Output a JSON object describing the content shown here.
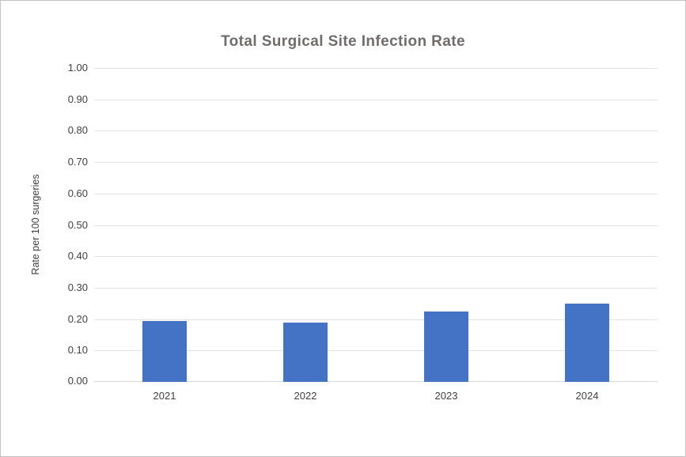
{
  "chart_data": {
    "type": "bar",
    "title": "Total Surgical Site Infection Rate",
    "xlabel": "",
    "ylabel": "Rate per 100 surgeries",
    "categories": [
      "2021",
      "2022",
      "2023",
      "2024"
    ],
    "values": [
      0.195,
      0.19,
      0.225,
      0.25
    ],
    "ylim": [
      0.0,
      1.0
    ],
    "ytick_step": 0.1,
    "ytick_labels": [
      "0.00",
      "0.10",
      "0.20",
      "0.30",
      "0.40",
      "0.50",
      "0.60",
      "0.70",
      "0.80",
      "0.90",
      "1.00"
    ],
    "grid": true,
    "legend": false,
    "bar_color": "#4472C4",
    "gridline_color": "#e3e3e3",
    "title_color": "#706c6c",
    "tick_label_color": "#404040"
  }
}
